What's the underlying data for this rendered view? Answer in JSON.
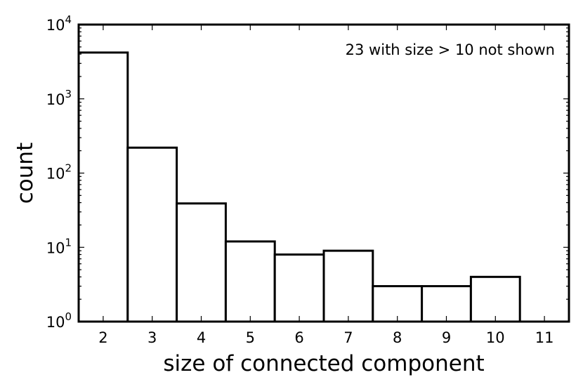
{
  "chart_data": {
    "type": "bar",
    "x_axis_label": "size of connected component",
    "y_axis_label": "count",
    "y_scale": "log",
    "y_range": [
      1,
      10000
    ],
    "x_range": [
      1.5,
      11.5
    ],
    "categories": [
      "2",
      "3",
      "4",
      "5",
      "6",
      "7",
      "8",
      "9",
      "10",
      "11"
    ],
    "values": [
      4200,
      220,
      39,
      12,
      8,
      9,
      3,
      3,
      4,
      0
    ],
    "annotation": "23 with size > 10 not shown",
    "grid": false,
    "y_tick_labels": [
      {
        "base": "10",
        "exp": "0",
        "value": 1
      },
      {
        "base": "10",
        "exp": "1",
        "value": 10
      },
      {
        "base": "10",
        "exp": "2",
        "value": 100
      },
      {
        "base": "10",
        "exp": "3",
        "value": 1000
      },
      {
        "base": "10",
        "exp": "4",
        "value": 10000
      }
    ],
    "x_tick_labels": [
      "2",
      "3",
      "4",
      "5",
      "6",
      "7",
      "8",
      "9",
      "10",
      "11"
    ],
    "colors": {
      "bar_fill": "#ffffff",
      "bar_edge": "#000000",
      "frame": "#000000"
    }
  }
}
